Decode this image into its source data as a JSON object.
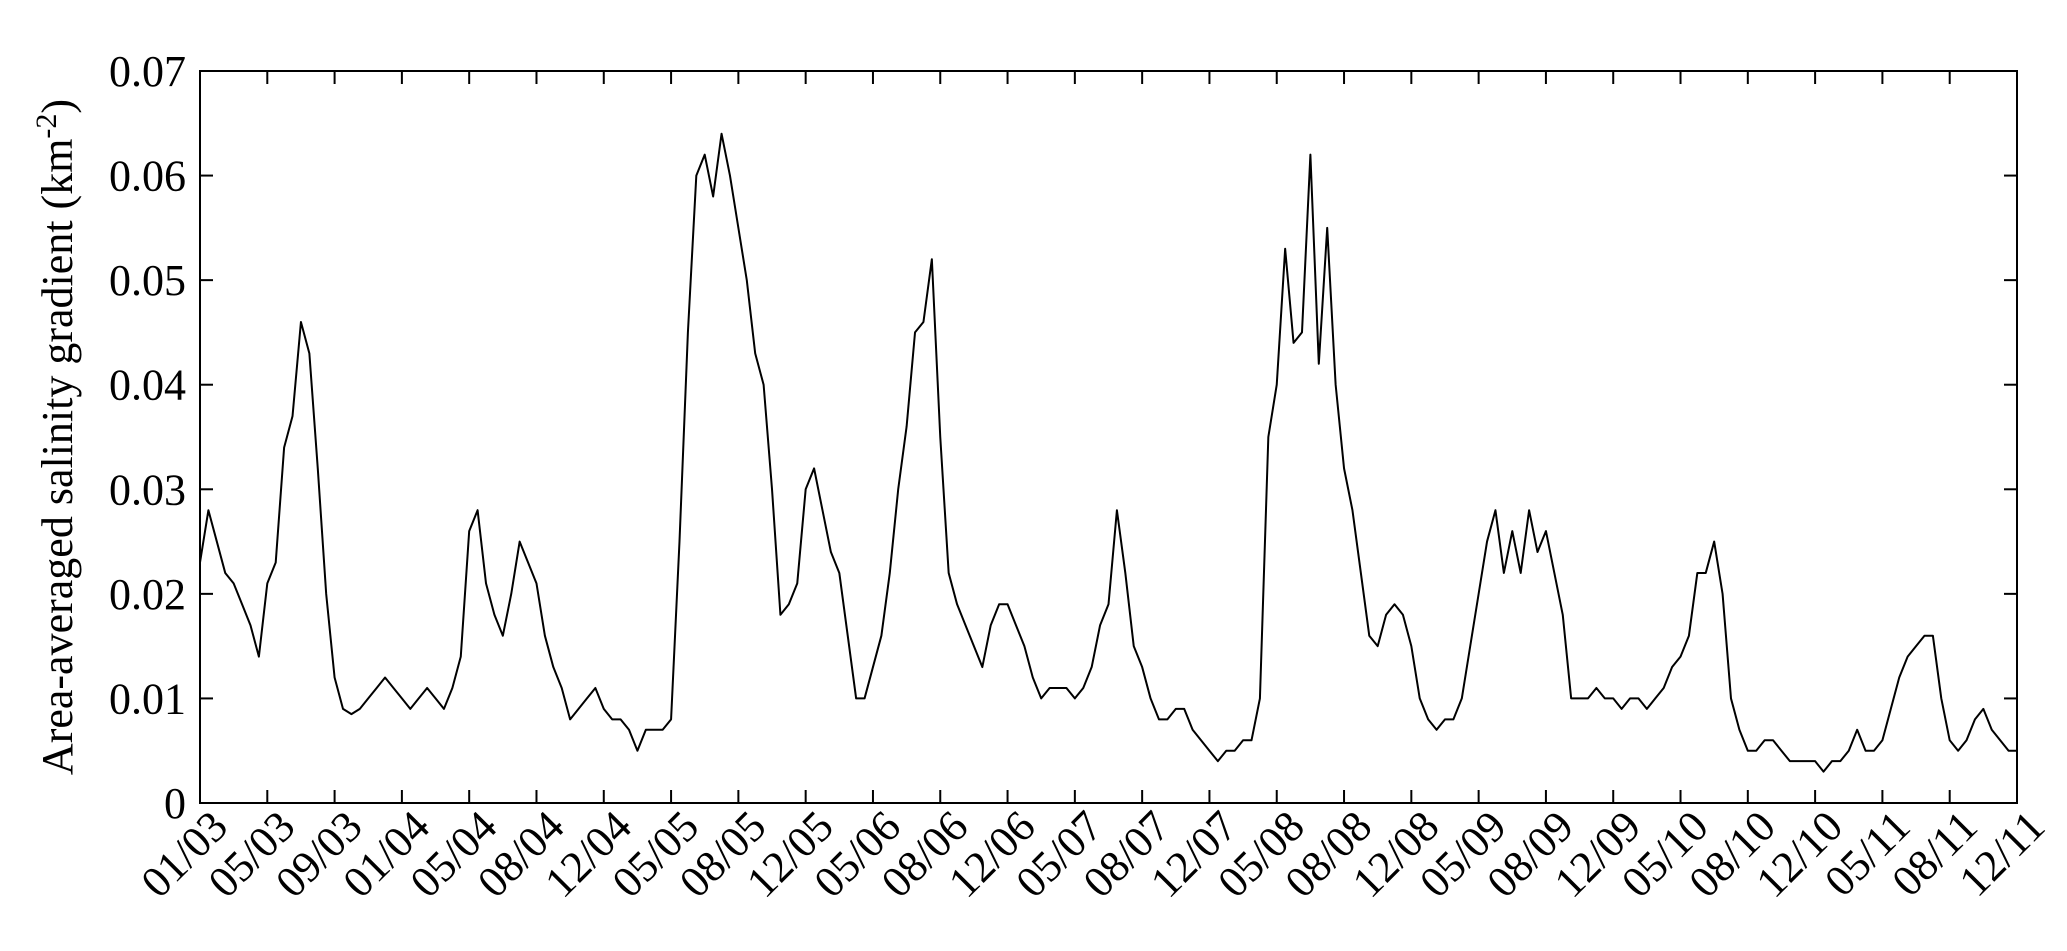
{
  "chart_data": {
    "type": "line",
    "y_label": [
      "Area-averaged salinity gradient (km",
      "-2",
      ")"
    ],
    "categories": [
      "01/03",
      null,
      null,
      null,
      null,
      null,
      null,
      null,
      "05/03",
      null,
      null,
      null,
      null,
      null,
      null,
      null,
      "09/03",
      null,
      null,
      null,
      null,
      null,
      null,
      null,
      "01/04",
      null,
      null,
      null,
      null,
      null,
      null,
      null,
      "05/04",
      null,
      null,
      null,
      null,
      null,
      null,
      null,
      "08/04",
      null,
      null,
      null,
      null,
      null,
      null,
      null,
      "12/04",
      null,
      null,
      null,
      null,
      null,
      null,
      null,
      "05/05",
      null,
      null,
      null,
      null,
      null,
      null,
      null,
      "08/05",
      null,
      null,
      null,
      null,
      null,
      null,
      null,
      "12/05",
      null,
      null,
      null,
      null,
      null,
      null,
      null,
      "05/06",
      null,
      null,
      null,
      null,
      null,
      null,
      null,
      "08/06",
      null,
      null,
      null,
      null,
      null,
      null,
      null,
      "12/06",
      null,
      null,
      null,
      null,
      null,
      null,
      null,
      "05/07",
      null,
      null,
      null,
      null,
      null,
      null,
      null,
      "08/07",
      null,
      null,
      null,
      null,
      null,
      null,
      null,
      "12/07",
      null,
      null,
      null,
      null,
      null,
      null,
      null,
      "05/08",
      null,
      null,
      null,
      null,
      null,
      null,
      null,
      "08/08",
      null,
      null,
      null,
      null,
      null,
      null,
      null,
      "12/08",
      null,
      null,
      null,
      null,
      null,
      null,
      null,
      "05/09",
      null,
      null,
      null,
      null,
      null,
      null,
      null,
      "08/09",
      null,
      null,
      null,
      null,
      null,
      null,
      null,
      "12/09",
      null,
      null,
      null,
      null,
      null,
      null,
      null,
      "05/10",
      null,
      null,
      null,
      null,
      null,
      null,
      null,
      "08/10",
      null,
      null,
      null,
      null,
      null,
      null,
      null,
      "12/10",
      null,
      null,
      null,
      null,
      null,
      null,
      null,
      "05/11",
      null,
      null,
      null,
      null,
      null,
      null,
      null,
      "08/11",
      null,
      null,
      null,
      null,
      null,
      null,
      null,
      "12/11"
    ],
    "values": [
      0.023,
      0.028,
      0.025,
      0.022,
      0.021,
      0.019,
      0.017,
      0.014,
      0.021,
      0.023,
      0.034,
      0.037,
      0.046,
      0.043,
      0.032,
      0.02,
      0.012,
      0.009,
      0.0085,
      0.009,
      0.01,
      0.011,
      0.012,
      0.011,
      0.01,
      0.009,
      0.01,
      0.011,
      0.01,
      0.009,
      0.011,
      0.014,
      0.026,
      0.028,
      0.021,
      0.018,
      0.016,
      0.02,
      0.025,
      0.023,
      0.021,
      0.016,
      0.013,
      0.011,
      0.008,
      0.009,
      0.01,
      0.011,
      0.009,
      0.008,
      0.008,
      0.007,
      0.005,
      0.007,
      0.007,
      0.007,
      0.008,
      0.025,
      0.045,
      0.06,
      0.062,
      0.058,
      0.064,
      0.06,
      0.055,
      0.05,
      0.043,
      0.04,
      0.03,
      0.018,
      0.019,
      0.021,
      0.03,
      0.032,
      0.028,
      0.024,
      0.022,
      0.016,
      0.01,
      0.01,
      0.013,
      0.016,
      0.022,
      0.03,
      0.036,
      0.045,
      0.046,
      0.052,
      0.035,
      0.022,
      0.019,
      0.017,
      0.015,
      0.013,
      0.017,
      0.019,
      0.019,
      0.017,
      0.015,
      0.012,
      0.01,
      0.011,
      0.011,
      0.011,
      0.01,
      0.011,
      0.013,
      0.017,
      0.019,
      0.028,
      0.022,
      0.015,
      0.013,
      0.01,
      0.008,
      0.008,
      0.009,
      0.009,
      0.007,
      0.006,
      0.005,
      0.004,
      0.005,
      0.005,
      0.006,
      0.006,
      0.01,
      0.035,
      0.04,
      0.053,
      0.044,
      0.045,
      0.062,
      0.042,
      0.055,
      0.04,
      0.032,
      0.028,
      0.022,
      0.016,
      0.015,
      0.018,
      0.019,
      0.018,
      0.015,
      0.01,
      0.008,
      0.007,
      0.008,
      0.008,
      0.01,
      0.015,
      0.02,
      0.025,
      0.028,
      0.022,
      0.026,
      0.022,
      0.028,
      0.024,
      0.026,
      0.022,
      0.018,
      0.01,
      0.01,
      0.01,
      0.011,
      0.01,
      0.01,
      0.009,
      0.01,
      0.01,
      0.009,
      0.01,
      0.011,
      0.013,
      0.014,
      0.016,
      0.022,
      0.022,
      0.025,
      0.02,
      0.01,
      0.007,
      0.005,
      0.005,
      0.006,
      0.006,
      0.005,
      0.004,
      0.004,
      0.004,
      0.004,
      0.003,
      0.004,
      0.004,
      0.005,
      0.007,
      0.005,
      0.005,
      0.006,
      0.009,
      0.012,
      0.014,
      0.015,
      0.016,
      0.016,
      0.01,
      0.006,
      0.005,
      0.006,
      0.008,
      0.009,
      0.007,
      0.006,
      0.005,
      0.005
    ],
    "color": "#000000",
    "ylim": [
      0,
      0.07
    ],
    "yticks": [
      0,
      0.01,
      0.02,
      0.03,
      0.04,
      0.05,
      0.06,
      0.07
    ]
  }
}
